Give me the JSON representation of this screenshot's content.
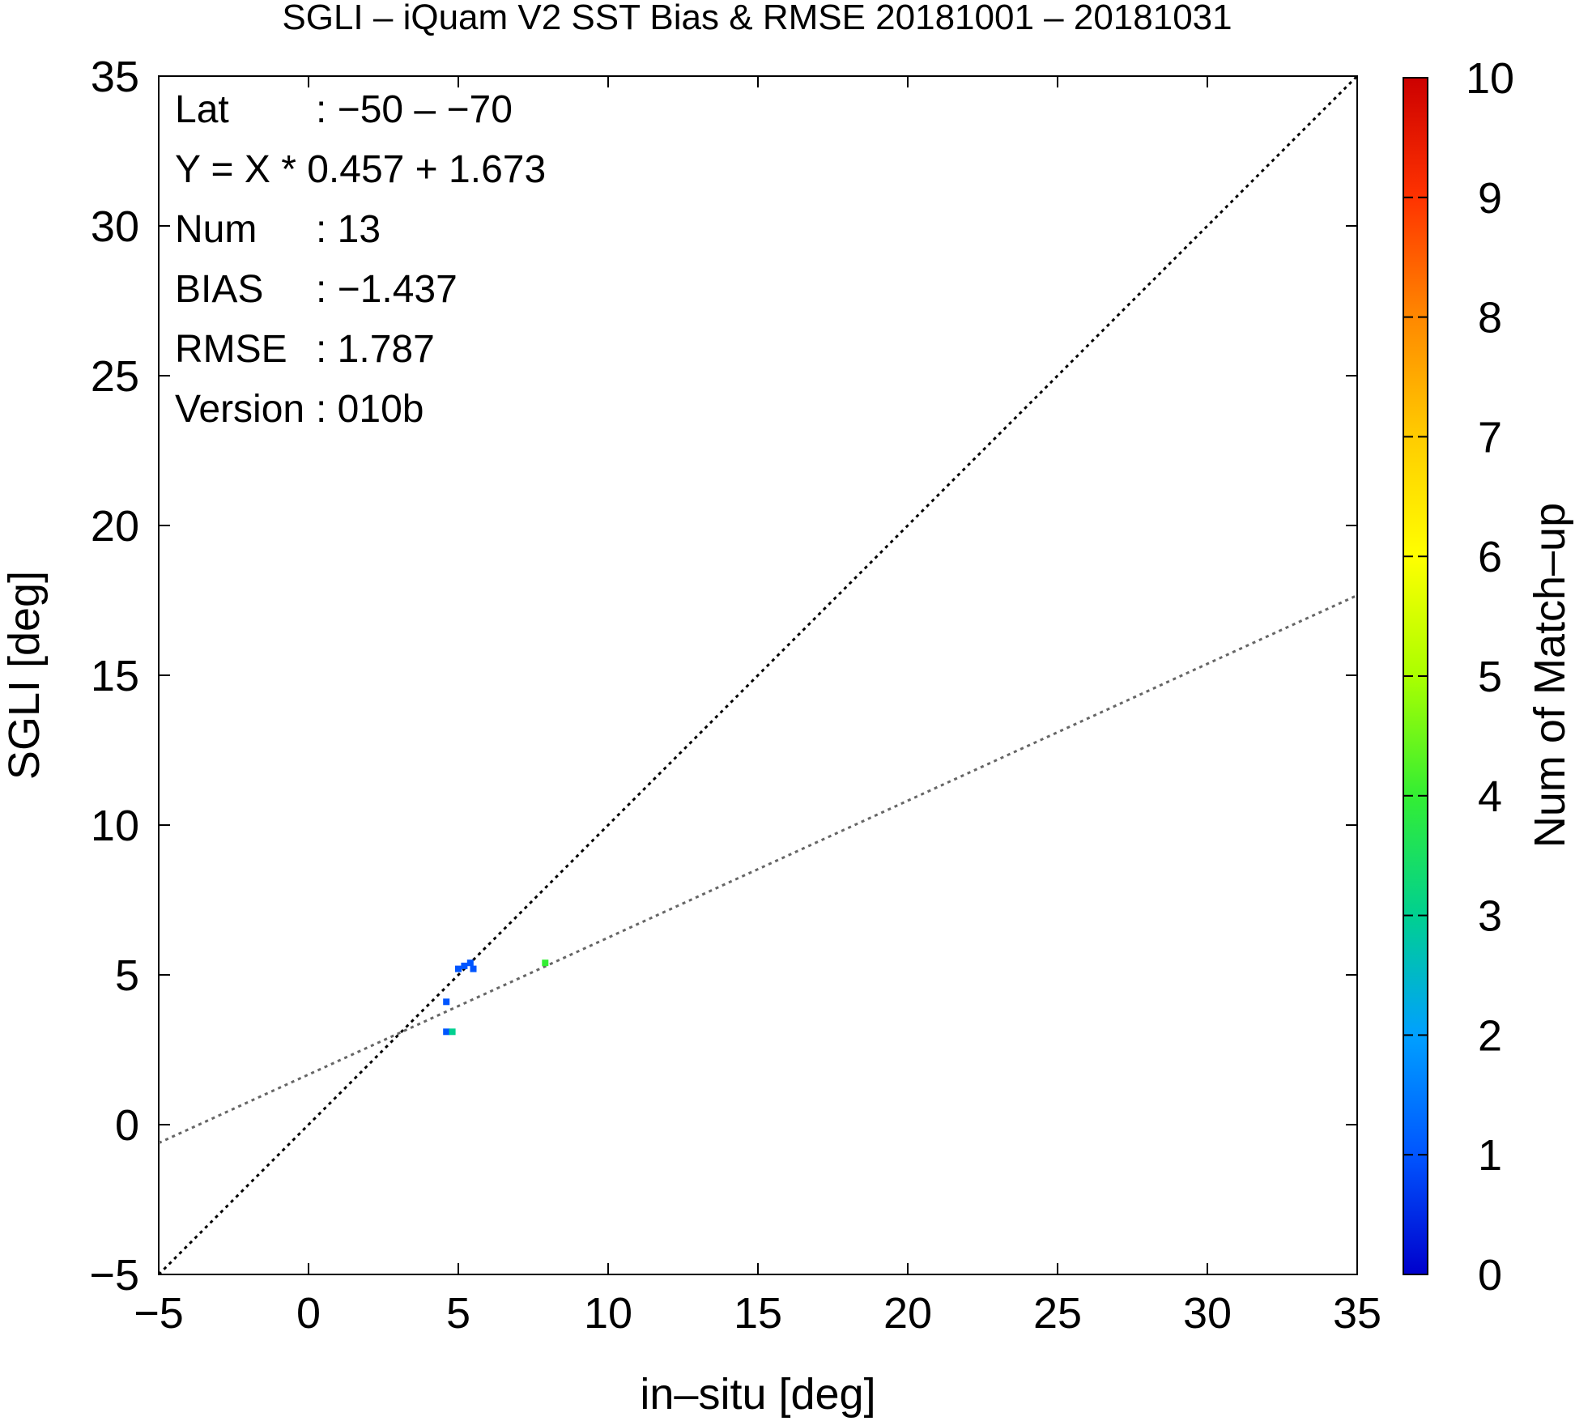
{
  "chart_data": {
    "type": "scatter",
    "title": "SGLI – iQuam V2 SST Bias & RMSE 20181001 – 20181031",
    "xlabel": "in–situ [deg]",
    "ylabel": "SGLI [deg]",
    "xlim": [
      -5,
      35
    ],
    "ylim": [
      -5,
      35
    ],
    "x_ticks": [
      "−5",
      "0",
      "5",
      "10",
      "15",
      "20",
      "25",
      "30",
      "35"
    ],
    "y_ticks": [
      "−5",
      "0",
      "5",
      "10",
      "15",
      "20",
      "25",
      "30",
      "35"
    ],
    "grid": false,
    "stats": [
      {
        "key": "Lat",
        "value": ": −50 – −70"
      },
      {
        "key": "Y = X * 0.457 + 1.673",
        "value": ""
      },
      {
        "key": "Num",
        "value": ": 13"
      },
      {
        "key": "BIAS",
        "value": ": −1.437"
      },
      {
        "key": "RMSE",
        "value": ": 1.787"
      },
      {
        "key": "Version",
        "value": ": 010b"
      }
    ],
    "regression": {
      "slope": 0.457,
      "intercept": 1.673,
      "color": "#666666"
    },
    "identity_line": {
      "color": "#000000"
    },
    "points": [
      {
        "x": 4.6,
        "y": 3.1,
        "count": 1
      },
      {
        "x": 4.8,
        "y": 3.1,
        "count": 3
      },
      {
        "x": 4.6,
        "y": 4.1,
        "count": 1
      },
      {
        "x": 5.0,
        "y": 5.2,
        "count": 1
      },
      {
        "x": 5.2,
        "y": 5.3,
        "count": 1
      },
      {
        "x": 5.4,
        "y": 5.4,
        "count": 1
      },
      {
        "x": 5.5,
        "y": 5.2,
        "count": 1
      },
      {
        "x": 7.9,
        "y": 5.4,
        "count": 4
      }
    ],
    "colorbar": {
      "label": "Num of Match–up",
      "min": 0,
      "max": 10,
      "ticks": [
        "0",
        "1",
        "2",
        "3",
        "4",
        "5",
        "6",
        "7",
        "8",
        "9",
        "10"
      ],
      "colors": [
        "#0000cc",
        "#0055ff",
        "#00a0ff",
        "#00d090",
        "#33ee33",
        "#aaff00",
        "#ffff00",
        "#ffcc00",
        "#ff8800",
        "#ff3300",
        "#cc0000"
      ]
    }
  }
}
